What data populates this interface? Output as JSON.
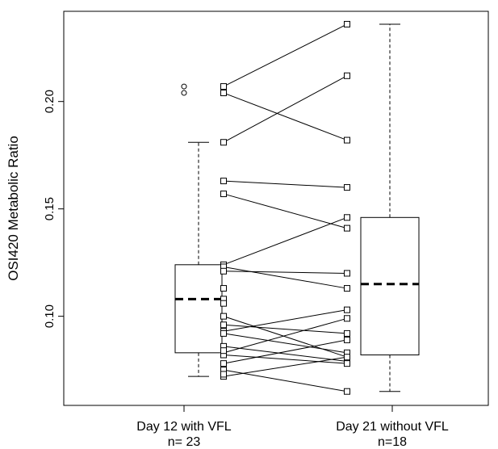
{
  "chart_data": {
    "type": "box",
    "ylabel": "OSI420 Metabolic Ratio",
    "xlabel": "",
    "ylim": [
      0.0585,
      0.242
    ],
    "yticks": [
      0.1,
      0.15,
      0.2
    ],
    "ytick_labels": [
      "0.10",
      "0.15",
      "0.20"
    ],
    "grid": false,
    "groups": [
      {
        "label_line1": "Day 12 with VFL",
        "label_line2": "n= 23",
        "box": {
          "whisker_low": 0.072,
          "q1": 0.083,
          "median": 0.108,
          "q3": 0.124,
          "whisker_high": 0.181
        },
        "outliers": [
          0.204,
          0.207
        ]
      },
      {
        "label_line1": "Day 21 without VFL",
        "label_line2": "n=18",
        "box": {
          "whisker_low": 0.065,
          "q1": 0.082,
          "median": 0.115,
          "q3": 0.146,
          "whisker_high": 0.236
        },
        "outliers": []
      }
    ],
    "paired": [
      {
        "day12": 0.207,
        "day21": 0.236
      },
      {
        "day12": 0.204,
        "day21": 0.182
      },
      {
        "day12": 0.181,
        "day21": 0.212
      },
      {
        "day12": 0.163,
        "day21": 0.16
      },
      {
        "day12": 0.157,
        "day21": 0.141
      },
      {
        "day12": 0.124,
        "day21": 0.146
      },
      {
        "day12": 0.123,
        "day21": 0.113
      },
      {
        "day12": 0.121,
        "day21": 0.12
      },
      {
        "day12": 0.1,
        "day21": 0.081
      },
      {
        "day12": 0.096,
        "day21": 0.092
      },
      {
        "day12": 0.093,
        "day21": 0.103
      },
      {
        "day12": 0.092,
        "day21": 0.083
      },
      {
        "day12": 0.086,
        "day21": 0.079
      },
      {
        "day12": 0.083,
        "day21": 0.099
      },
      {
        "day12": 0.082,
        "day21": 0.078
      },
      {
        "day12": 0.078,
        "day21": 0.089
      },
      {
        "day12": 0.075,
        "day21": 0.065
      },
      {
        "day12": 0.072,
        "day21": 0.081
      }
    ],
    "unpaired_day12": [
      0.113,
      0.108,
      0.106,
      0.084,
      0.073
    ]
  }
}
